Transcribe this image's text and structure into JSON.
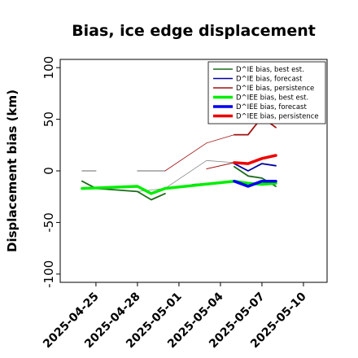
{
  "chart_data": {
    "type": "line",
    "title": "Bias, ice edge displacement",
    "ylabel": "Displacement bias (km)",
    "xlabel": "",
    "ylim": [
      -108,
      108
    ],
    "xlim": [
      "2025-04-22T10:00",
      "2025-05-11T17:00"
    ],
    "yticks": [
      -100,
      -50,
      0,
      50,
      100
    ],
    "xticks": [
      {
        "label": "2025-04-25",
        "date": "2025-04-25",
        "color": "#000000"
      },
      {
        "label": "2025-04-28",
        "date": "2025-04-28",
        "color": "#000000"
      },
      {
        "label": "2025-05-01",
        "date": "2025-05-01",
        "color": "#228B22"
      },
      {
        "label": "2025-05-04",
        "date": "2025-05-04",
        "color": "#000000"
      },
      {
        "label": "2025-05-07",
        "date": "2025-05-07",
        "color": "#000000"
      },
      {
        "label": "2025-05-10",
        "date": "2025-05-10",
        "color": "#000000"
      }
    ],
    "grid": false,
    "legend_position": "top-right",
    "series": [
      {
        "key": "gray1",
        "color": "#888888",
        "width": 1.2,
        "points": [
          [
            "2025-04-24",
            "0"
          ],
          [
            "2025-04-25",
            "0"
          ]
        ]
      },
      {
        "key": "gray2",
        "color": "#888888",
        "width": 1.2,
        "points": [
          [
            "2025-04-28",
            "0"
          ],
          [
            "2025-04-30",
            "0"
          ]
        ]
      },
      {
        "key": "gray3",
        "color": "#888888",
        "width": 0.8,
        "points": [
          [
            "2025-04-25",
            "-17"
          ],
          [
            "2025-04-28",
            "-20"
          ],
          [
            "2025-04-30",
            "-17"
          ],
          [
            "2025-05-03",
            "10"
          ],
          [
            "2025-05-05",
            "8"
          ]
        ]
      },
      {
        "key": "brown",
        "color": "#a01010",
        "width": 0.8,
        "points": [
          [
            "2025-04-30",
            "0"
          ],
          [
            "2025-05-03",
            "27"
          ],
          [
            "2025-05-05",
            "35"
          ],
          [
            "2025-05-06",
            "35"
          ],
          [
            "2025-05-07",
            "52"
          ],
          [
            "2025-05-08",
            "42"
          ]
        ]
      },
      {
        "key": "darkred",
        "color": "#a01010",
        "width": 1.0,
        "points": [
          [
            "2025-05-03",
            "2"
          ],
          [
            "2025-05-05",
            "8"
          ]
        ]
      },
      {
        "key": "thinblue",
        "color": "#1f4ea8",
        "width": 0.9,
        "points": [
          [
            "2025-05-02",
            "-13"
          ],
          [
            "2025-05-05",
            "-10"
          ]
        ]
      },
      {
        "name": "D^IE bias, best est.",
        "color": "#1a6b1a",
        "width": 1.8,
        "points": [
          [
            "2025-04-24",
            "-10"
          ],
          [
            "2025-04-25",
            "-17"
          ],
          [
            "2025-04-28",
            "-20"
          ],
          [
            "2025-04-29",
            "-28"
          ],
          [
            "2025-04-30",
            "-22"
          ]
        ]
      },
      {
        "key": "best_est_2",
        "color": "#1a6b1a",
        "width": 1.8,
        "points": [
          [
            "2025-05-05",
            "4"
          ],
          [
            "2025-05-06",
            "-5"
          ],
          [
            "2025-05-07",
            "-7"
          ],
          [
            "2025-05-08",
            "-15"
          ]
        ]
      },
      {
        "name": "D^IE bias, forecast",
        "color": "#0000a0",
        "width": 1.8,
        "points": [
          [
            "2025-05-05",
            "7"
          ],
          [
            "2025-05-06",
            "0"
          ],
          [
            "2025-05-07",
            "7"
          ],
          [
            "2025-05-08",
            "5"
          ]
        ]
      },
      {
        "name": "D^IE bias, persistence",
        "color": "#a01010",
        "width": 1.8,
        "points": [
          [
            "2025-05-05",
            "35"
          ],
          [
            "2025-05-06",
            "35"
          ],
          [
            "2025-05-07",
            "52"
          ],
          [
            "2025-05-08",
            "42"
          ]
        ]
      },
      {
        "name": "D^IEE bias, best est.",
        "color": "#00ee00",
        "width": 3.5,
        "points": [
          [
            "2025-04-24",
            "-17"
          ],
          [
            "2025-04-28",
            "-15"
          ],
          [
            "2025-04-29",
            "-22"
          ],
          [
            "2025-04-30",
            "-17"
          ],
          [
            "2025-05-05",
            "-10"
          ],
          [
            "2025-05-06",
            "-12"
          ],
          [
            "2025-05-07",
            "-13"
          ],
          [
            "2025-05-08",
            "-12"
          ]
        ]
      },
      {
        "name": "D^IEE bias, forecast",
        "color": "#0000ee",
        "width": 3.5,
        "points": [
          [
            "2025-05-05",
            "-10"
          ],
          [
            "2025-05-06",
            "-15"
          ],
          [
            "2025-05-07",
            "-10"
          ],
          [
            "2025-05-08",
            "-10"
          ]
        ]
      },
      {
        "name": "D^IEE bias, persistence",
        "color": "#ee0000",
        "width": 3.5,
        "points": [
          [
            "2025-05-05",
            "8"
          ],
          [
            "2025-05-06",
            "7"
          ],
          [
            "2025-05-07",
            "12"
          ],
          [
            "2025-05-08",
            "15"
          ]
        ]
      }
    ],
    "legend": [
      {
        "label": "D^IE bias, best est.",
        "color": "#1a6b1a",
        "width": 1.5
      },
      {
        "label": "D^IE bias, forecast",
        "color": "#0000a0",
        "width": 1.5
      },
      {
        "label": "D^IE bias, persistence",
        "color": "#a01010",
        "width": 1.5
      },
      {
        "label": "D^IEE bias, best est.",
        "color": "#00ee00",
        "width": 3.5
      },
      {
        "label": "D^IEE bias, forecast",
        "color": "#0000ee",
        "width": 3.5
      },
      {
        "label": "D^IEE bias, persistence",
        "color": "#ee0000",
        "width": 3.5
      }
    ]
  }
}
